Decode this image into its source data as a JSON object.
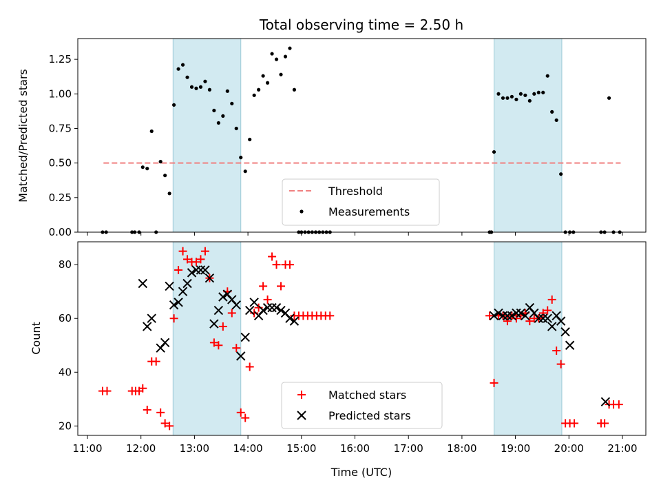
{
  "chart_data": [
    {
      "type": "scatter",
      "title": "Total observing time = 2.50 h",
      "xlabel": "",
      "ylabel": "Matched/Predicted stars",
      "ylim": [
        0,
        1.4
      ],
      "yticks": [
        "0.00",
        "0.25",
        "0.50",
        "0.75",
        "1.00",
        "1.25"
      ],
      "xlim": [
        "11:00",
        "21:00"
      ],
      "xticks": [
        "11:00",
        "12:00",
        "13:00",
        "14:00",
        "15:00",
        "16:00",
        "17:00",
        "18:00",
        "19:00",
        "20:00",
        "21:00"
      ],
      "x_tick_labels_visible": false,
      "grid": false,
      "legend_placement": "lower-center",
      "legend": [
        "Threshold",
        "Measurements"
      ],
      "observing_windows": [
        [
          "12:36",
          "13:52"
        ],
        [
          "18:36",
          "19:52"
        ]
      ],
      "threshold": {
        "name": "Threshold",
        "value": 0.5,
        "x_start": "11:18",
        "x_end": "20:58",
        "color": "#f08080",
        "style": "dashed"
      },
      "series": [
        {
          "name": "Measurements",
          "color": "#000000",
          "marker": "dot",
          "x": [
            "11:17",
            "11:21",
            "11:50",
            "11:53",
            "11:58",
            "12:17",
            "12:02",
            "12:07",
            "12:12",
            "12:22",
            "12:27",
            "12:32",
            "12:37",
            "12:42",
            "12:47",
            "12:52",
            "12:57",
            "13:02",
            "13:07",
            "13:12",
            "13:17",
            "13:22",
            "13:27",
            "13:32",
            "13:37",
            "13:42",
            "13:47",
            "13:52",
            "13:57",
            "14:02",
            "14:07",
            "14:12",
            "14:17",
            "14:22",
            "14:27",
            "14:32",
            "14:37",
            "14:42",
            "14:47",
            "14:52",
            "14:57",
            "15:00",
            "15:04",
            "15:08",
            "15:12",
            "15:16",
            "15:20",
            "15:24",
            "15:28",
            "15:32",
            "18:31",
            "18:33",
            "18:36",
            "18:41",
            "18:46",
            "18:51",
            "18:56",
            "19:01",
            "19:06",
            "19:11",
            "19:16",
            "19:21",
            "19:26",
            "19:31",
            "19:36",
            "19:41",
            "19:46",
            "19:51",
            "19:56",
            "20:01",
            "20:05",
            "20:36",
            "20:40",
            "20:45",
            "20:50",
            "20:57"
          ],
          "y": [
            0,
            0,
            0,
            0,
            0,
            0,
            0.47,
            0.46,
            0.73,
            0.51,
            0.41,
            0.28,
            0.92,
            1.18,
            1.21,
            1.12,
            1.05,
            1.04,
            1.05,
            1.09,
            1.03,
            0.88,
            0.79,
            0.84,
            1.02,
            0.93,
            0.75,
            0.54,
            0.44,
            0.67,
            0.99,
            1.03,
            1.13,
            1.08,
            1.29,
            1.25,
            1.14,
            1.27,
            1.33,
            1.03,
            0,
            0,
            0,
            0,
            0,
            0,
            0,
            0,
            0,
            0,
            0,
            0,
            0.58,
            1.0,
            0.97,
            0.97,
            0.98,
            0.96,
            1.0,
            0.99,
            0.95,
            1.0,
            1.01,
            1.01,
            1.13,
            0.87,
            0.81,
            0.42,
            0,
            0,
            0,
            0,
            0,
            0.97,
            0,
            0
          ]
        }
      ]
    },
    {
      "type": "scatter",
      "title": "",
      "xlabel": "Time (UTC)",
      "ylabel": "Count",
      "ylim": [
        16.5,
        88.5
      ],
      "yticks": [
        "20",
        "40",
        "60",
        "80"
      ],
      "xlim": [
        "11:00",
        "21:00"
      ],
      "xticks": [
        "11:00",
        "12:00",
        "13:00",
        "14:00",
        "15:00",
        "16:00",
        "17:00",
        "18:00",
        "19:00",
        "20:00",
        "21:00"
      ],
      "grid": false,
      "legend_placement": "lower-center",
      "legend": [
        "Matched stars",
        "Predicted stars"
      ],
      "observing_windows": [
        [
          "12:36",
          "13:52"
        ],
        [
          "18:36",
          "19:52"
        ]
      ],
      "series": [
        {
          "name": "Matched stars",
          "color": "#ff0000",
          "marker": "plus",
          "x": [
            "11:17",
            "11:22",
            "11:50",
            "11:54",
            "11:58",
            "12:02",
            "12:07",
            "12:12",
            "12:17",
            "12:22",
            "12:27",
            "12:32",
            "12:37",
            "12:42",
            "12:47",
            "12:52",
            "12:57",
            "13:02",
            "13:07",
            "13:12",
            "13:17",
            "13:22",
            "13:27",
            "13:32",
            "13:37",
            "13:42",
            "13:47",
            "13:52",
            "13:57",
            "14:02",
            "14:07",
            "14:12",
            "14:17",
            "14:22",
            "14:27",
            "14:32",
            "14:37",
            "14:42",
            "14:47",
            "14:52",
            "14:57",
            "15:02",
            "15:07",
            "15:12",
            "15:17",
            "15:22",
            "15:27",
            "15:32",
            "18:31",
            "18:36",
            "18:41",
            "18:46",
            "18:51",
            "18:56",
            "19:01",
            "19:06",
            "19:11",
            "19:16",
            "19:21",
            "19:26",
            "19:31",
            "19:36",
            "19:41",
            "19:46",
            "19:51",
            "19:56",
            "20:01",
            "20:06",
            "20:36",
            "20:40",
            "20:45",
            "20:50",
            "20:56"
          ],
          "y": [
            33,
            33,
            33,
            33,
            33,
            34,
            26,
            44,
            44,
            25,
            21,
            20,
            60,
            78,
            85,
            82,
            81,
            81,
            82,
            85,
            75,
            51,
            50,
            57,
            70,
            62,
            49,
            25,
            23,
            42,
            62,
            64,
            72,
            67,
            83,
            80,
            72,
            80,
            80,
            61,
            61,
            61,
            61,
            61,
            61,
            61,
            61,
            61,
            61,
            36,
            61,
            61,
            59,
            61,
            60,
            61,
            62,
            59,
            60,
            60,
            62,
            63,
            67,
            48,
            43,
            21,
            21,
            21,
            21,
            21,
            28,
            28,
            28
          ]
        },
        {
          "name": "Predicted stars",
          "color": "#000000",
          "marker": "x",
          "x": [
            "12:02",
            "12:07",
            "12:12",
            "12:22",
            "12:27",
            "12:32",
            "12:37",
            "12:42",
            "12:47",
            "12:52",
            "12:57",
            "13:02",
            "13:07",
            "13:12",
            "13:17",
            "13:22",
            "13:27",
            "13:32",
            "13:37",
            "13:42",
            "13:47",
            "13:52",
            "13:57",
            "14:02",
            "14:07",
            "14:12",
            "14:17",
            "14:22",
            "14:27",
            "14:32",
            "14:37",
            "14:42",
            "14:47",
            "14:52",
            "18:36",
            "18:41",
            "18:46",
            "18:51",
            "18:56",
            "19:01",
            "19:06",
            "19:11",
            "19:16",
            "19:21",
            "19:26",
            "19:31",
            "19:36",
            "19:41",
            "19:46",
            "19:51",
            "19:56",
            "20:01",
            "20:41"
          ],
          "y": [
            73,
            57,
            60,
            49,
            51,
            72,
            65,
            66,
            70,
            73,
            77,
            78,
            78,
            78,
            75,
            58,
            63,
            68,
            69,
            67,
            65,
            46,
            53,
            63,
            66,
            61,
            63,
            64,
            64,
            64,
            63,
            62,
            60,
            59,
            61,
            62,
            61,
            61,
            61,
            62,
            62,
            61,
            64,
            62,
            60,
            60,
            60,
            57,
            61,
            59,
            55,
            50,
            29
          ]
        }
      ]
    }
  ]
}
